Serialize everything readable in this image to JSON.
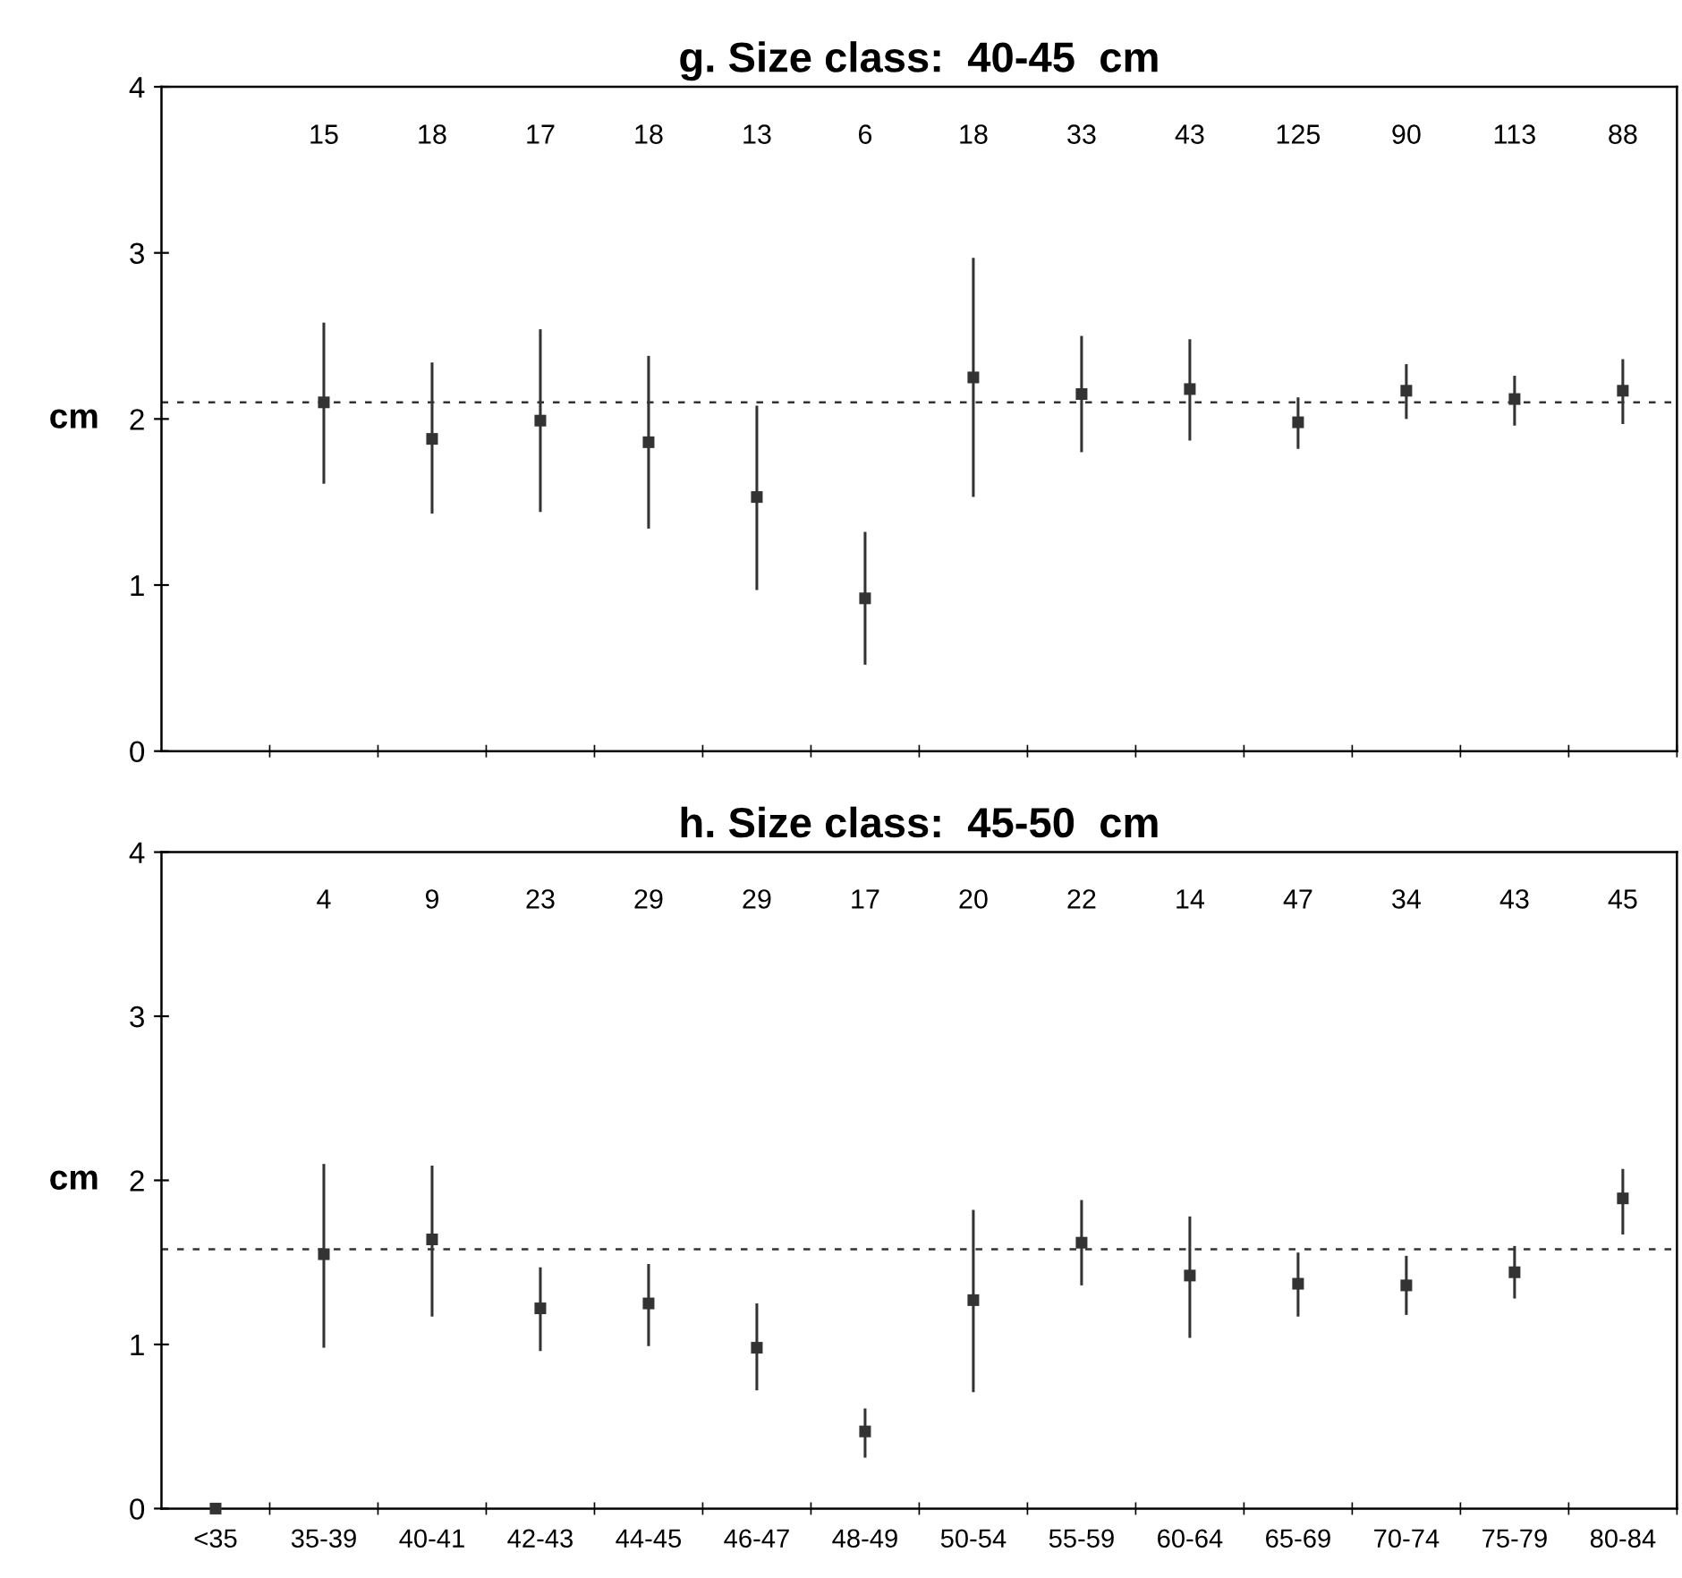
{
  "chart_data": [
    {
      "type": "scatter",
      "title": "g. Size class:  40-45  cm",
      "ylabel": "cm",
      "categories": [
        null,
        null,
        null,
        null,
        null,
        null,
        null,
        null,
        null,
        null,
        null,
        null,
        null,
        null
      ],
      "series": [
        {
          "color": "#333333",
          "values": [
            null,
            2.1,
            1.88,
            1.99,
            1.86,
            1.53,
            0.92,
            2.25,
            2.15,
            2.18,
            1.98,
            2.17,
            2.12,
            2.17
          ],
          "errors": [
            null,
            [
              1.61,
              2.58
            ],
            [
              1.43,
              2.34
            ],
            [
              1.44,
              2.54
            ],
            [
              1.34,
              2.38
            ],
            [
              0.97,
              2.08
            ],
            [
              0.52,
              1.32
            ],
            [
              1.53,
              2.97
            ],
            [
              1.8,
              2.5
            ],
            [
              1.87,
              2.48
            ],
            [
              1.82,
              2.13
            ],
            [
              2.0,
              2.33
            ],
            [
              1.96,
              2.26
            ],
            [
              1.97,
              2.36
            ]
          ]
        }
      ],
      "ylim": [
        0,
        4
      ],
      "yticks": [
        0,
        1,
        2,
        3,
        4
      ],
      "tick_labels": "y",
      "grid": false,
      "legend": false,
      "ref_lines": [
        {
          "axis": "y",
          "value": 2.1,
          "label": null,
          "line_style": "dashed",
          "color": "#333333"
        }
      ],
      "annotations": [
        "15",
        "18",
        "17",
        "18",
        "13",
        "6",
        "18",
        "33",
        "43",
        "125",
        "90",
        "113",
        "88"
      ]
    },
    {
      "type": "scatter",
      "title": "h. Size class:  45-50  cm",
      "ylabel": "cm",
      "categories": [
        "<35",
        "35-39",
        "40-41",
        "42-43",
        "44-45",
        "46-47",
        "48-49",
        "50-54",
        "55-59",
        "60-64",
        "65-69",
        "70-74",
        "75-79",
        "80-84"
      ],
      "series": [
        {
          "color": "#333333",
          "values": [
            0,
            1.55,
            1.64,
            1.22,
            1.25,
            0.98,
            0.47,
            1.27,
            1.62,
            1.42,
            1.37,
            1.36,
            1.44,
            1.89
          ],
          "errors": [
            null,
            [
              0.98,
              2.1
            ],
            [
              1.17,
              2.09
            ],
            [
              0.96,
              1.47
            ],
            [
              0.99,
              1.49
            ],
            [
              0.72,
              1.25
            ],
            [
              0.31,
              0.61
            ],
            [
              0.71,
              1.82
            ],
            [
              1.36,
              1.88
            ],
            [
              1.04,
              1.78
            ],
            [
              1.17,
              1.56
            ],
            [
              1.18,
              1.54
            ],
            [
              1.28,
              1.6
            ],
            [
              1.67,
              2.07
            ]
          ]
        }
      ],
      "ylim": [
        0,
        4
      ],
      "yticks": [
        0,
        1,
        2,
        3,
        4
      ],
      "grid": false,
      "legend": false,
      "ref_lines": [
        {
          "axis": "y",
          "value": 1.58,
          "label": null,
          "line_style": "dashed",
          "color": "#333333"
        }
      ],
      "annotations": [
        "4",
        "9",
        "23",
        "29",
        "29",
        "17",
        "20",
        "22",
        "14",
        "47",
        "34",
        "43",
        "45"
      ]
    }
  ]
}
